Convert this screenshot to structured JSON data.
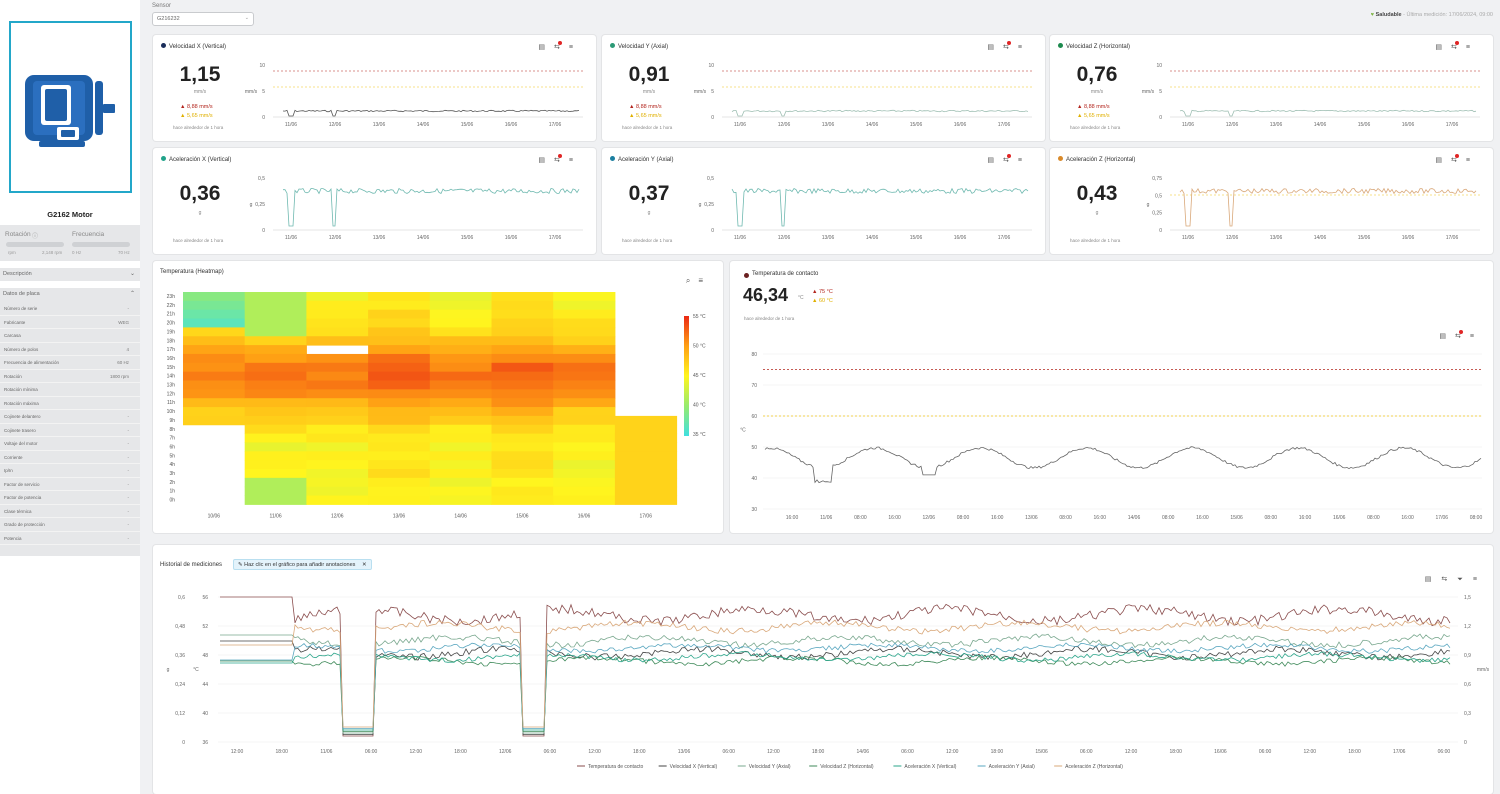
{
  "sidebar": {
    "motor_name": "G2162 Motor",
    "rotation_label": "Rotación",
    "rotation_min": "rpm",
    "rotation_max": "2,148 rpm",
    "frequency_label": "Frecuencia",
    "frequency_min": "0 Hz",
    "frequency_max": "70 Hz",
    "description_label": "Descripción",
    "nameplate_label": "Datos de placa",
    "nameplate": [
      {
        "label": "Número de serie",
        "value": "-"
      },
      {
        "label": "Fabricante",
        "value": "WEG"
      },
      {
        "label": "Carcasa",
        "value": ""
      },
      {
        "label": "Número de polos",
        "value": "4"
      },
      {
        "label": "Frecuencia de alimentación",
        "value": "60 Hz"
      },
      {
        "label": "Rotación",
        "value": "1800 rpm"
      },
      {
        "label": "Rotación mínima",
        "value": ""
      },
      {
        "label": "Rotación máxima",
        "value": ""
      },
      {
        "label": "Cojinete delantero",
        "value": "-"
      },
      {
        "label": "Cojinete trasero",
        "value": "-"
      },
      {
        "label": "Voltaje del motor",
        "value": "-"
      },
      {
        "label": "Corriente",
        "value": "-"
      },
      {
        "label": "Ip/In",
        "value": "-"
      },
      {
        "label": "Factor de servicio",
        "value": "-"
      },
      {
        "label": "Factor de potencia",
        "value": "-"
      },
      {
        "label": "Clase térmica",
        "value": "-"
      },
      {
        "label": "Grado de protección",
        "value": "-"
      },
      {
        "label": "Potencia",
        "value": "-"
      }
    ]
  },
  "header": {
    "sensor_label": "Sensor",
    "sensor_value": "G216232",
    "status": "Saludable",
    "last_measure": "- Última medición: 17/06/2024, 09:00"
  },
  "colors": {
    "red_alert": "#b3261e",
    "yellow_alert": "#f0c419",
    "brand_blue": "#1f5fa8",
    "frame": "#23a7c9"
  },
  "x_ticks": [
    "11/06",
    "12/06",
    "13/06",
    "14/06",
    "15/06",
    "16/06",
    "17/06"
  ],
  "ago_text": "hace alrededor de 1 hora",
  "cards": [
    {
      "title": "Velocidad X (Vertical)",
      "color": "#1a2d5a",
      "value": "1,15",
      "unit": "mm/s",
      "alert_hi": "8,88 mm/s",
      "alert_lo": "5,65 mm/s",
      "yunit": "mm/s",
      "yticks": [
        "10",
        "5",
        "0"
      ]
    },
    {
      "title": "Velocidad Y (Axial)",
      "color": "#2c9a76",
      "value": "0,91",
      "unit": "mm/s",
      "alert_hi": "8,88 mm/s",
      "alert_lo": "5,65 mm/s",
      "yunit": "mm/s",
      "yticks": [
        "10",
        "5",
        "0"
      ]
    },
    {
      "title": "Velocidad Z (Horizontal)",
      "color": "#1d8a4e",
      "value": "0,76",
      "unit": "mm/s",
      "alert_hi": "8,88 mm/s",
      "alert_lo": "5,65 mm/s",
      "yunit": "mm/s",
      "yticks": [
        "10",
        "5",
        "0"
      ]
    },
    {
      "title": "Aceleración X (Vertical)",
      "color": "#21a38a",
      "value": "0,36",
      "unit": "g",
      "alert_hi": "",
      "alert_lo": "",
      "yunit": "g",
      "yticks": [
        "0,5",
        "0,25",
        "0"
      ]
    },
    {
      "title": "Aceleración Y (Axial)",
      "color": "#1c7fa0",
      "value": "0,37",
      "unit": "g",
      "alert_hi": "",
      "alert_lo": "",
      "yunit": "g",
      "yticks": [
        "0,5",
        "0,25",
        "0"
      ]
    },
    {
      "title": "Aceleración Z (Horizontal)",
      "color": "#d98a2b",
      "value": "0,43",
      "unit": "g",
      "alert_hi": "",
      "alert_lo": "",
      "yunit": "g",
      "yticks": [
        "0,75",
        "0,5",
        "0,25",
        "0"
      ]
    }
  ],
  "heatmap": {
    "title": "Temperatura (Heatmap)",
    "hours": [
      "23h",
      "22h",
      "21h",
      "20h",
      "19h",
      "18h",
      "17h",
      "16h",
      "15h",
      "14h",
      "13h",
      "12h",
      "11h",
      "10h",
      "9h",
      "8h",
      "7h",
      "6h",
      "5h",
      "4h",
      "3h",
      "2h",
      "1h",
      "0h"
    ],
    "days": [
      "10/06",
      "11/06",
      "12/06",
      "13/06",
      "14/06",
      "15/06",
      "16/06",
      "17/06"
    ],
    "legend": [
      "55 °C",
      "50 °C",
      "45 °C",
      "40 °C",
      "35 °C"
    ]
  },
  "contact_temp": {
    "title": "Temperatura de contacto",
    "value": "46,34",
    "unit": "°C",
    "alert_hi": "75 °C",
    "alert_lo": "60 °C",
    "yunit": "°C",
    "yticks": [
      "80",
      "70",
      "60",
      "50",
      "40",
      "30"
    ],
    "xticks": [
      "16:00",
      "11/06",
      "08:00",
      "16:00",
      "12/06",
      "08:00",
      "16:00",
      "13/06",
      "08:00",
      "16:00",
      "14/06",
      "08:00",
      "16:00",
      "15/06",
      "08:00",
      "16:00",
      "16/06",
      "08:00",
      "16:00",
      "17/06",
      "08:00"
    ]
  },
  "history": {
    "title": "Historial de mediciones",
    "annotation_hint": "Haz clic en el gráfico para añadir anotaciones",
    "left_g_ticks": [
      "0,6",
      "0,48",
      "0,36",
      "0,24",
      "0,12",
      "0"
    ],
    "left_c_ticks": [
      "56",
      "52",
      "48",
      "44",
      "40",
      "36"
    ],
    "right_ticks": [
      "1,5",
      "1,2",
      "0,9",
      "0,6",
      "0,3",
      "0"
    ],
    "left_g_unit": "g",
    "left_c_unit": "°C",
    "right_unit": "mm/s",
    "xticks": [
      "12:00",
      "18:00",
      "11/06",
      "06:00",
      "12:00",
      "18:00",
      "12/06",
      "06:00",
      "12:00",
      "18:00",
      "13/06",
      "06:00",
      "12:00",
      "18:00",
      "14/06",
      "06:00",
      "12:00",
      "18:00",
      "15/06",
      "06:00",
      "12:00",
      "18:00",
      "16/06",
      "06:00",
      "12:00",
      "18:00",
      "17/06",
      "06:00"
    ],
    "legend": [
      {
        "name": "Temperatura de contacto",
        "color": "#8a4d4d"
      },
      {
        "name": "Velocidad X (Vertical)",
        "color": "#444444"
      },
      {
        "name": "Velocidad Y (Axial)",
        "color": "#7aa88f"
      },
      {
        "name": "Velocidad Z (Horizontal)",
        "color": "#3f8a5a"
      },
      {
        "name": "Aceleración X (Vertical)",
        "color": "#2aa58a"
      },
      {
        "name": "Aceleración Y (Axial)",
        "color": "#5aa7c0"
      },
      {
        "name": "Aceleración Z (Horizontal)",
        "color": "#d9a87a"
      }
    ]
  }
}
